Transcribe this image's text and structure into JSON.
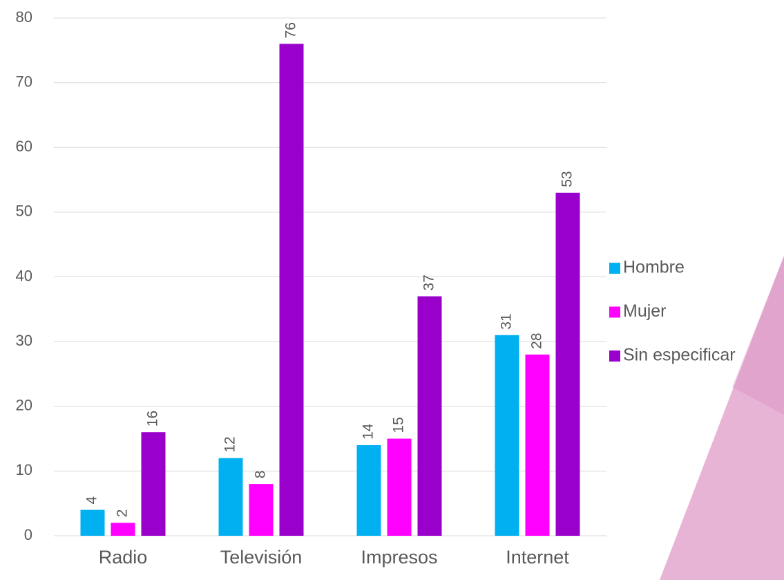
{
  "chart_data": {
    "type": "bar",
    "categories": [
      "Radio",
      "Televisión",
      "Impresos",
      "Internet"
    ],
    "series": [
      {
        "name": "Hombre",
        "color": "#00b0f0",
        "values": [
          4,
          12,
          14,
          31
        ]
      },
      {
        "name": "Mujer",
        "color": "#ff00ff",
        "values": [
          2,
          8,
          15,
          28
        ]
      },
      {
        "name": "Sin especificar",
        "color": "#9900cc",
        "values": [
          16,
          76,
          37,
          53
        ]
      }
    ],
    "ylim": [
      0,
      80
    ],
    "yticks": [
      0,
      10,
      20,
      30,
      40,
      50,
      60,
      70,
      80
    ],
    "grid": true,
    "legend": "right"
  }
}
